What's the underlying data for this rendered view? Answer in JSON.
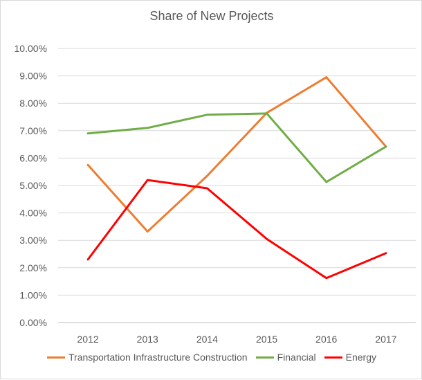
{
  "chart_data": {
    "type": "line",
    "title": "Share of New Projects",
    "categories": [
      "2012",
      "2013",
      "2014",
      "2015",
      "2016",
      "2017"
    ],
    "yticks": [
      "0.00%",
      "1.00%",
      "2.00%",
      "3.00%",
      "4.00%",
      "5.00%",
      "6.00%",
      "7.00%",
      "8.00%",
      "9.00%",
      "10.00%"
    ],
    "ylim": [
      0,
      10
    ],
    "grid": true,
    "legend_position": "bottom",
    "series": [
      {
        "name": "Transportation Infrastructure Construction",
        "color": "#ed7d31",
        "values": [
          5.75,
          3.32,
          5.35,
          7.65,
          8.95,
          6.42
        ]
      },
      {
        "name": "Financial",
        "color": "#70ad47",
        "values": [
          6.9,
          7.1,
          7.58,
          7.63,
          5.13,
          6.42
        ]
      },
      {
        "name": "Energy",
        "color": "#ff0000",
        "values": [
          2.3,
          5.2,
          4.9,
          3.05,
          1.62,
          2.53
        ]
      }
    ]
  }
}
